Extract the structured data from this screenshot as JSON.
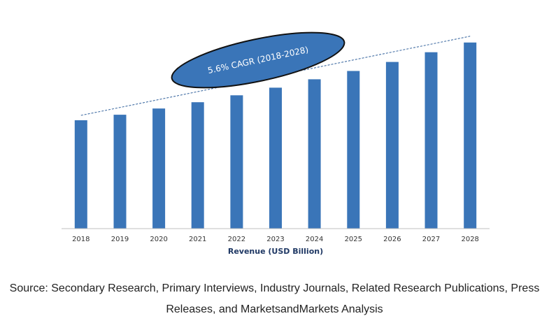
{
  "chart_data": {
    "type": "bar",
    "categories": [
      "2018",
      "2019",
      "2020",
      "2021",
      "2022",
      "2023",
      "2024",
      "2025",
      "2026",
      "2027",
      "2028"
    ],
    "values": [
      156,
      164,
      173,
      182,
      192,
      203,
      215,
      227,
      240,
      254,
      268
    ],
    "xlabel": "Revenue (USD Billion)",
    "ylabel": "",
    "ylim": [
      0,
      300
    ],
    "grid": false,
    "annotations": [
      {
        "type": "trend-line",
        "style": "dashed"
      },
      {
        "type": "callout-ellipse",
        "text": "5.6% CAGR (2018-2028)"
      }
    ],
    "colors": {
      "bar": "#3a75b8",
      "ellipse_fill": "#3a75b8",
      "ellipse_stroke": "#111111",
      "trend_line": "#2f5f9a",
      "axis": "#bfbfbf"
    }
  },
  "footer": {
    "source_line1": "Source: Secondary Research, Primary Interviews, Industry Journals, Related Research Publications, Press",
    "source_line2": "Releases, and MarketsandMarkets Analysis"
  }
}
